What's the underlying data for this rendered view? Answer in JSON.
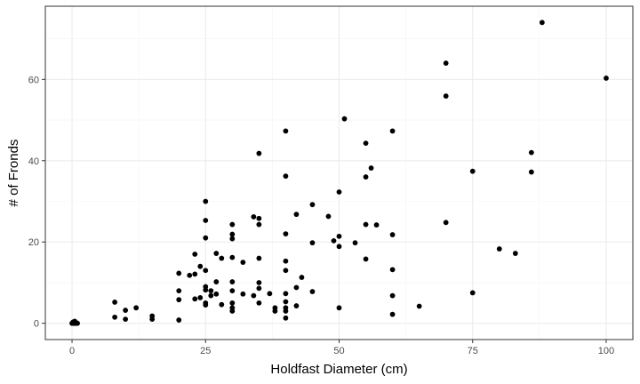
{
  "chart_data": {
    "type": "scatter",
    "title": "",
    "xlabel": "Holdfast Diameter (cm)",
    "ylabel": "# of Fronds",
    "xlim": [
      -5,
      105
    ],
    "ylim": [
      -4,
      78
    ],
    "x_ticks": [
      0,
      25,
      50,
      75,
      100
    ],
    "y_ticks": [
      0,
      20,
      40,
      60
    ],
    "x_tick_labels": [
      "0",
      "25",
      "50",
      "75",
      "100"
    ],
    "y_tick_labels": [
      "0",
      "20",
      "40",
      "60"
    ],
    "grid": true,
    "legend": "none",
    "colors": {
      "point": "#000000",
      "panel_border": "#333333",
      "grid_major": "#ebebeb",
      "grid_minor": "#f5f5f5",
      "tick_label": "#4d4d4d"
    },
    "points": [
      {
        "x": 0,
        "y": 0
      },
      {
        "x": 0.2,
        "y": 0.3
      },
      {
        "x": 0.3,
        "y": 0
      },
      {
        "x": 0.5,
        "y": 0.5
      },
      {
        "x": 0.5,
        "y": 0
      },
      {
        "x": 0.7,
        "y": 0.2
      },
      {
        "x": 0.8,
        "y": 0
      },
      {
        "x": 1,
        "y": 0
      },
      {
        "x": 0.4,
        "y": 0.1
      },
      {
        "x": 0.6,
        "y": 0
      },
      {
        "x": 8,
        "y": 5.2
      },
      {
        "x": 8,
        "y": 1.5
      },
      {
        "x": 10,
        "y": 3.2
      },
      {
        "x": 10,
        "y": 1
      },
      {
        "x": 12,
        "y": 3.8
      },
      {
        "x": 15,
        "y": 1.8
      },
      {
        "x": 15,
        "y": 1
      },
      {
        "x": 20,
        "y": 12.3
      },
      {
        "x": 20,
        "y": 8
      },
      {
        "x": 20,
        "y": 5.8
      },
      {
        "x": 20,
        "y": 0.8
      },
      {
        "x": 22,
        "y": 11.8
      },
      {
        "x": 23,
        "y": 12.1
      },
      {
        "x": 23,
        "y": 17
      },
      {
        "x": 23,
        "y": 6
      },
      {
        "x": 24,
        "y": 14
      },
      {
        "x": 24,
        "y": 6.3
      },
      {
        "x": 25,
        "y": 30
      },
      {
        "x": 25,
        "y": 25.3
      },
      {
        "x": 25,
        "y": 21
      },
      {
        "x": 25,
        "y": 13
      },
      {
        "x": 25,
        "y": 9
      },
      {
        "x": 25,
        "y": 8.2
      },
      {
        "x": 25,
        "y": 5
      },
      {
        "x": 25,
        "y": 4.5
      },
      {
        "x": 26,
        "y": 8
      },
      {
        "x": 26,
        "y": 6.8
      },
      {
        "x": 27,
        "y": 17.2
      },
      {
        "x": 27,
        "y": 10.2
      },
      {
        "x": 27,
        "y": 7.2
      },
      {
        "x": 28,
        "y": 4.6
      },
      {
        "x": 28,
        "y": 16
      },
      {
        "x": 30,
        "y": 24.3
      },
      {
        "x": 30,
        "y": 21.9
      },
      {
        "x": 30,
        "y": 20.8
      },
      {
        "x": 30,
        "y": 16.2
      },
      {
        "x": 30,
        "y": 10.2
      },
      {
        "x": 30,
        "y": 8
      },
      {
        "x": 30,
        "y": 5
      },
      {
        "x": 30,
        "y": 3.8
      },
      {
        "x": 30,
        "y": 3
      },
      {
        "x": 32,
        "y": 15
      },
      {
        "x": 32,
        "y": 7.2
      },
      {
        "x": 34,
        "y": 26.2
      },
      {
        "x": 34,
        "y": 6.8
      },
      {
        "x": 35,
        "y": 41.8
      },
      {
        "x": 35,
        "y": 25.8
      },
      {
        "x": 35,
        "y": 24.3
      },
      {
        "x": 35,
        "y": 16
      },
      {
        "x": 35,
        "y": 10
      },
      {
        "x": 35,
        "y": 8.6
      },
      {
        "x": 35,
        "y": 5
      },
      {
        "x": 37,
        "y": 7.3
      },
      {
        "x": 38,
        "y": 3.8
      },
      {
        "x": 38,
        "y": 3
      },
      {
        "x": 40,
        "y": 47.3
      },
      {
        "x": 40,
        "y": 36.2
      },
      {
        "x": 40,
        "y": 22
      },
      {
        "x": 40,
        "y": 15.3
      },
      {
        "x": 40,
        "y": 13
      },
      {
        "x": 40,
        "y": 7.3
      },
      {
        "x": 40,
        "y": 5.3
      },
      {
        "x": 40,
        "y": 3.8
      },
      {
        "x": 40,
        "y": 3
      },
      {
        "x": 40,
        "y": 1.3
      },
      {
        "x": 42,
        "y": 26.8
      },
      {
        "x": 42,
        "y": 8.8
      },
      {
        "x": 42,
        "y": 4.3
      },
      {
        "x": 43,
        "y": 11.3
      },
      {
        "x": 45,
        "y": 29.2
      },
      {
        "x": 45,
        "y": 19.8
      },
      {
        "x": 45,
        "y": 7.8
      },
      {
        "x": 48,
        "y": 26.3
      },
      {
        "x": 49,
        "y": 20.3
      },
      {
        "x": 50,
        "y": 32.3
      },
      {
        "x": 50,
        "y": 21.4
      },
      {
        "x": 50,
        "y": 18.9
      },
      {
        "x": 50,
        "y": 3.8
      },
      {
        "x": 51,
        "y": 50.3
      },
      {
        "x": 53,
        "y": 19.8
      },
      {
        "x": 55,
        "y": 44.3
      },
      {
        "x": 55,
        "y": 36
      },
      {
        "x": 55,
        "y": 24.3
      },
      {
        "x": 55,
        "y": 15.8
      },
      {
        "x": 56,
        "y": 38.2
      },
      {
        "x": 57,
        "y": 24.2
      },
      {
        "x": 60,
        "y": 47.3
      },
      {
        "x": 60,
        "y": 21.8
      },
      {
        "x": 60,
        "y": 13.2
      },
      {
        "x": 60,
        "y": 6.8
      },
      {
        "x": 60,
        "y": 2.2
      },
      {
        "x": 65,
        "y": 4.2
      },
      {
        "x": 70,
        "y": 64
      },
      {
        "x": 70,
        "y": 55.9
      },
      {
        "x": 70,
        "y": 24.8
      },
      {
        "x": 75,
        "y": 37.4
      },
      {
        "x": 75,
        "y": 7.5
      },
      {
        "x": 80,
        "y": 18.3
      },
      {
        "x": 83,
        "y": 17.2
      },
      {
        "x": 86,
        "y": 42
      },
      {
        "x": 86,
        "y": 37.2
      },
      {
        "x": 88,
        "y": 74
      },
      {
        "x": 100,
        "y": 60.3
      }
    ]
  }
}
